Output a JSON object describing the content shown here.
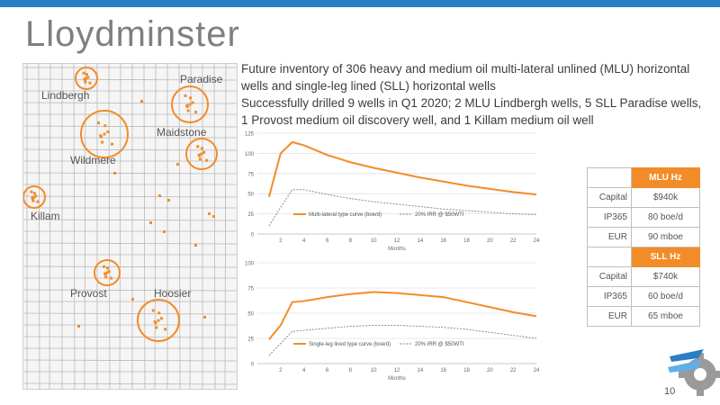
{
  "slide": {
    "title": "Lloydminster",
    "page_number": "10",
    "accent_color": "#f28c28",
    "bar_color": "#2a7fc4"
  },
  "summary": {
    "line1": "Future inventory of 306 heavy and medium oil multi-lateral unlined (MLU) horizontal wells and single-leg lined (SLL) horizontal wells",
    "line2": "Successfully drilled 9 wells in Q1 2020; 2 MLU Lindbergh wells, 5 SLL Paradise wells, 1 Provost medium oil discovery well, and 1 Killam medium oil well"
  },
  "map": {
    "labels": [
      "Paradise",
      "Lindbergh",
      "Maidstone",
      "Wildmere",
      "Killam",
      "Provost",
      "Hoosier"
    ]
  },
  "table": {
    "mlu_header": "MLU Hz",
    "sll_header": "SLL Hz",
    "mlu_rows": [
      {
        "label": "Capital",
        "value": "$940k"
      },
      {
        "label": "IP365",
        "value": "80 boe/d"
      },
      {
        "label": "EUR",
        "value": "90 mboe"
      }
    ],
    "sll_rows": [
      {
        "label": "Capital",
        "value": "$740k"
      },
      {
        "label": "IP365",
        "value": "60 boe/d"
      },
      {
        "label": "EUR",
        "value": "65 mboe"
      }
    ]
  },
  "chart_data": [
    {
      "type": "line",
      "xlabel": "Months",
      "ylabel": "",
      "xlim": [
        0,
        24
      ],
      "ylim": [
        0,
        125
      ],
      "xticks": [
        2,
        4,
        6,
        8,
        10,
        12,
        14,
        16,
        18,
        20,
        22,
        24
      ],
      "yticks": [
        0,
        25,
        50,
        75,
        100,
        125
      ],
      "legend_position": "bottom-left",
      "series": [
        {
          "name": "Multi-lateral type curve (boe/d)",
          "style": "solid",
          "color": "#f28c28",
          "x": [
            1,
            2,
            3,
            4,
            5,
            6,
            8,
            10,
            12,
            14,
            16,
            18,
            20,
            22,
            24
          ],
          "y": [
            46,
            100,
            114,
            110,
            104,
            98,
            89,
            82,
            76,
            70,
            65,
            60,
            56,
            52,
            49
          ]
        },
        {
          "name": "20% IRR @ $50WTI",
          "style": "dashed",
          "color": "#7f7f7f",
          "x": [
            1,
            2,
            3,
            4,
            5,
            6,
            8,
            10,
            12,
            14,
            16,
            18,
            20,
            22,
            24
          ],
          "y": [
            10,
            33,
            55,
            55,
            52,
            49,
            44,
            40,
            37,
            34,
            31,
            29,
            27,
            25,
            24
          ]
        }
      ]
    },
    {
      "type": "line",
      "xlabel": "Months",
      "ylabel": "",
      "xlim": [
        0,
        24
      ],
      "ylim": [
        0,
        100
      ],
      "xticks": [
        2,
        4,
        6,
        8,
        10,
        12,
        14,
        16,
        18,
        20,
        22,
        24
      ],
      "yticks": [
        0,
        25,
        50,
        75,
        100
      ],
      "legend_position": "bottom-left",
      "series": [
        {
          "name": "Single-leg lined type curve (boe/d)",
          "style": "solid",
          "color": "#f28c28",
          "x": [
            1,
            2,
            3,
            4,
            6,
            8,
            10,
            12,
            14,
            16,
            18,
            20,
            22,
            24
          ],
          "y": [
            24,
            38,
            61,
            62,
            66,
            69,
            71,
            70,
            68,
            66,
            61,
            56,
            51,
            47
          ]
        },
        {
          "name": "20% IRR @ $50WTI",
          "style": "dashed",
          "color": "#7f7f7f",
          "x": [
            1,
            2,
            3,
            4,
            6,
            8,
            10,
            12,
            14,
            16,
            18,
            20,
            22,
            24
          ],
          "y": [
            8,
            20,
            32,
            33,
            35,
            37,
            38,
            38,
            37,
            36,
            34,
            31,
            28,
            25
          ]
        }
      ]
    }
  ]
}
